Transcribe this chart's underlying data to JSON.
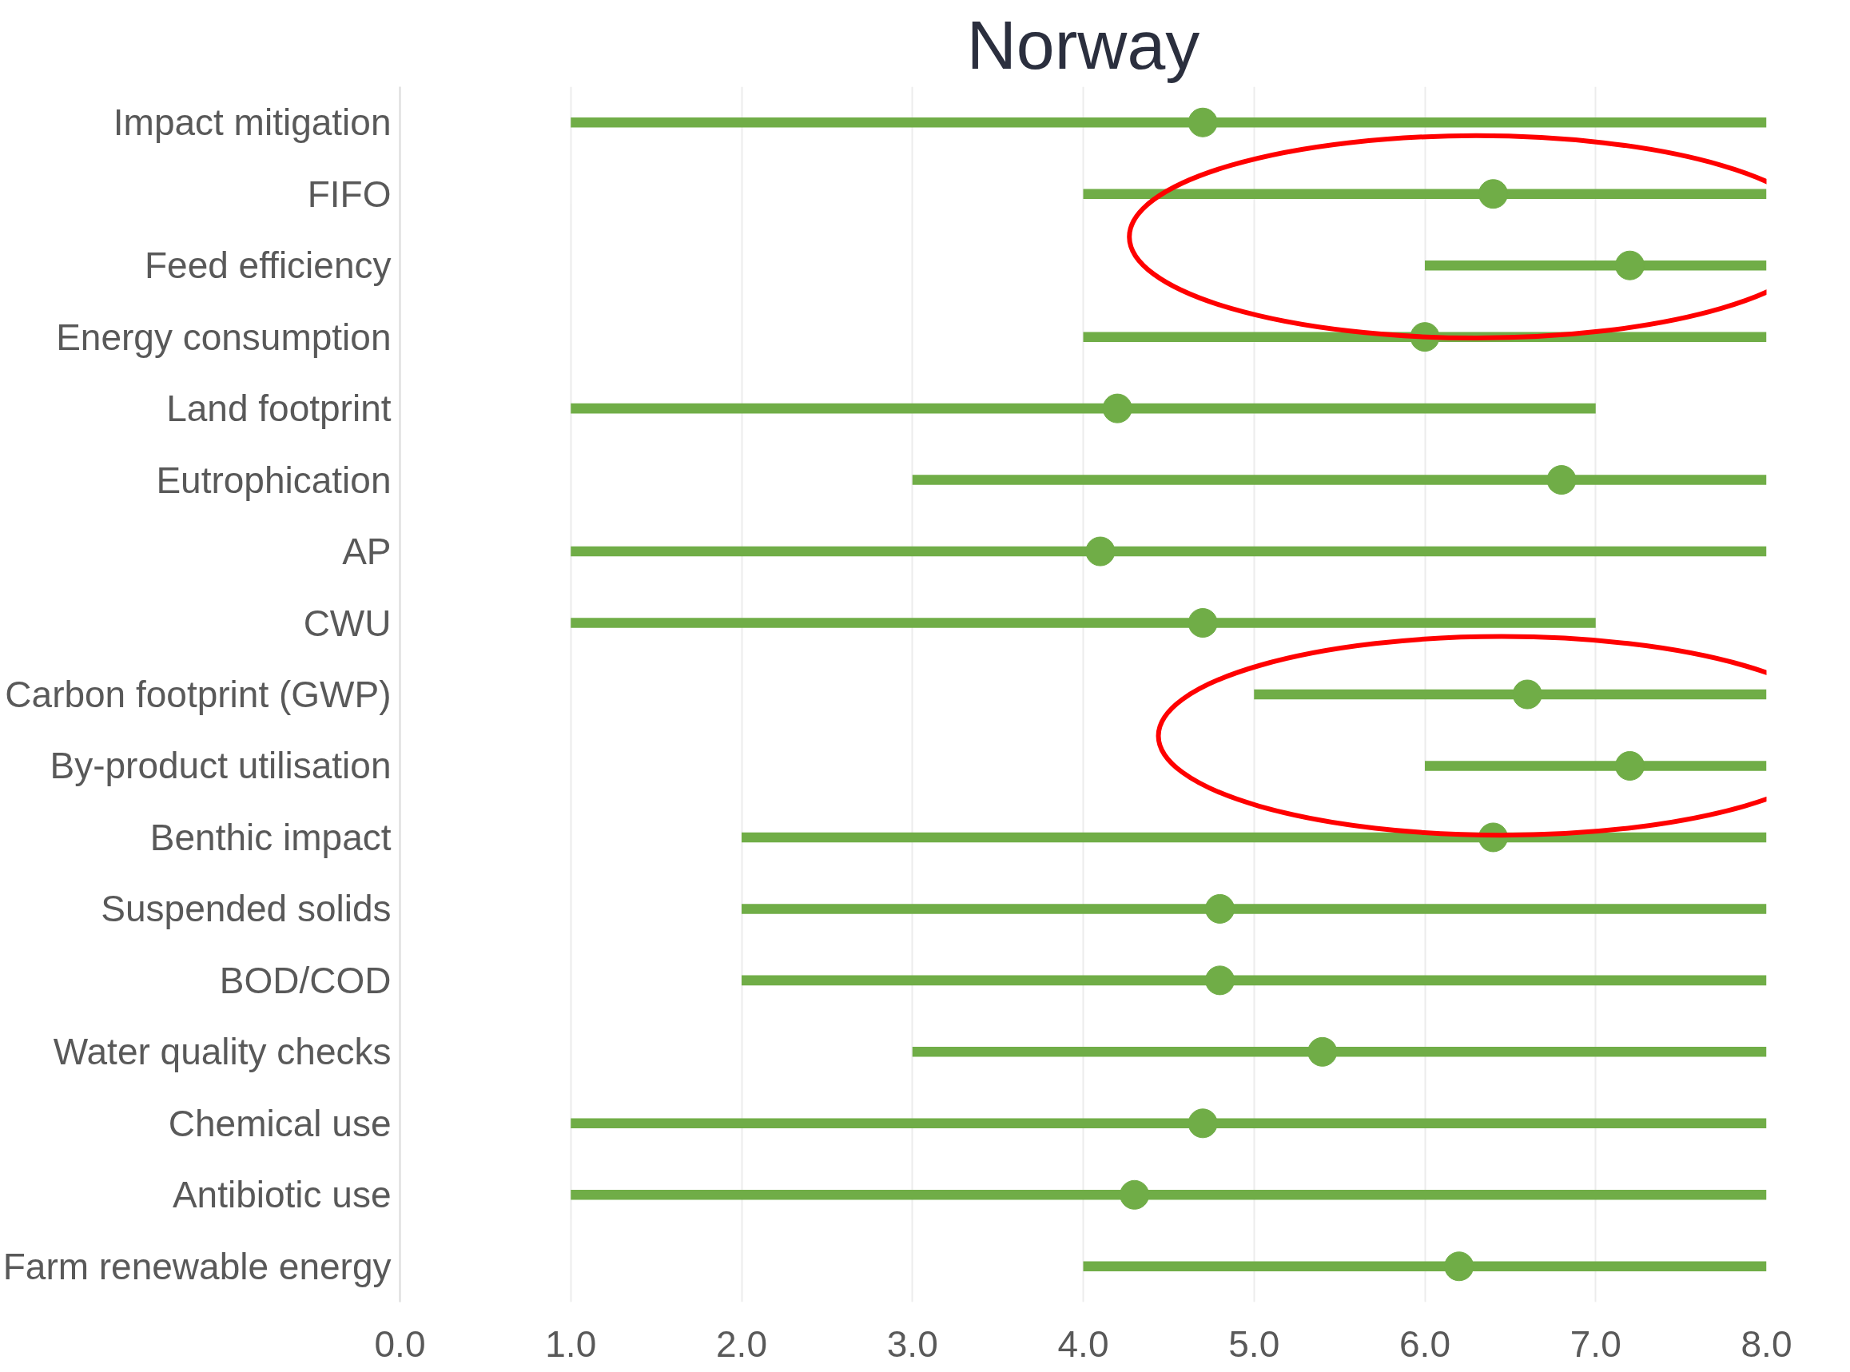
{
  "chart_data": {
    "type": "bar",
    "orientation": "horizontal",
    "title": "Norway",
    "categories": [
      "Impact mitigation",
      "FIFO",
      "Feed efficiency",
      "Energy consumption",
      "Land footprint",
      "Eutrophication",
      "AP",
      "CWU",
      "Carbon footprint (GWP)",
      "By-product utilisation",
      "Benthic impact",
      "Suspended solids",
      "BOD/COD",
      "Water quality checks",
      "Chemical use",
      "Antibiotic use",
      "Farm renewable energy"
    ],
    "series": [
      {
        "color": "#70ad47",
        "base": [
          1,
          4,
          6,
          4,
          1,
          3,
          1,
          1,
          5,
          6,
          2,
          2,
          2,
          3,
          1,
          1,
          4
        ],
        "values": [
          7,
          4,
          2,
          4,
          6,
          5,
          7,
          6,
          3,
          2,
          6,
          6,
          6,
          5,
          7,
          7,
          4
        ]
      },
      {
        "type": "scatter",
        "color": "#70ad47",
        "values": [
          4.7,
          6.4,
          7.2,
          6.0,
          4.2,
          6.8,
          4.1,
          4.7,
          6.6,
          7.2,
          6.4,
          4.8,
          4.8,
          5.4,
          4.7,
          4.3,
          6.2
        ]
      }
    ],
    "xlim": [
      0,
      8
    ],
    "xticks": [
      {
        "value": 0,
        "label": "0.0"
      },
      {
        "value": 1,
        "label": "1.0"
      },
      {
        "value": 2,
        "label": "2.0"
      },
      {
        "value": 3,
        "label": "3.0"
      },
      {
        "value": 4,
        "label": "4.0"
      },
      {
        "value": 5,
        "label": "5.0"
      },
      {
        "value": 6,
        "label": "6.0"
      },
      {
        "value": 7,
        "label": "7.0"
      },
      {
        "value": 8,
        "label": "8.0"
      }
    ],
    "grid": "x",
    "marker": "circle"
  }
}
